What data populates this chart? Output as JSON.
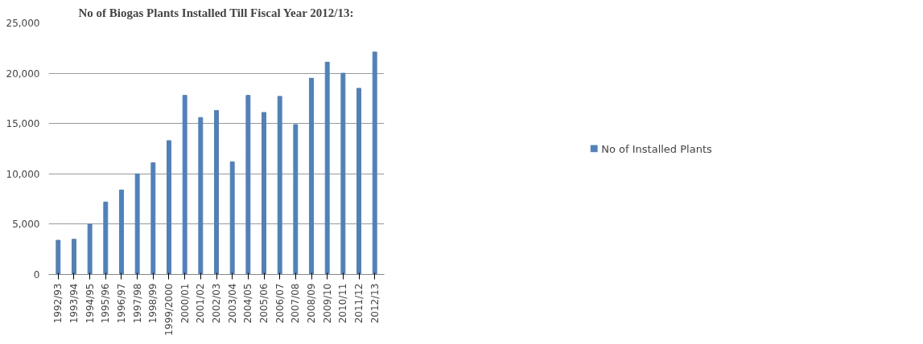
{
  "chart_data": {
    "type": "bar",
    "title": "No of Biogas Plants Installed Till Fiscal Year 2012/13:",
    "categories": [
      "1992/93",
      "1993/94",
      "1994/95",
      "1995/96",
      "1996/97",
      "1997/98",
      "1998/99",
      "1999/2000",
      "2000/01",
      "2001/02",
      "2002/03",
      "2003/04",
      "2004/05",
      "2005/06",
      "2006/07",
      "2007/08",
      "2008/09",
      "2009/10",
      "2010/11",
      "2011/12",
      "2012/13"
    ],
    "series": [
      {
        "name": "No of Installed Plants",
        "color": "#4f81bd",
        "values": [
          3400,
          3500,
          5000,
          7200,
          8400,
          10000,
          11100,
          13300,
          17800,
          15600,
          16300,
          11200,
          17800,
          16100,
          17700,
          14900,
          19500,
          21100,
          20000,
          18500,
          22100
        ]
      }
    ],
    "ylim": [
      0,
      25000
    ],
    "yticks": [
      {
        "value": 0,
        "label": "0"
      },
      {
        "value": 5000,
        "label": "5,000"
      },
      {
        "value": 10000,
        "label": "10,000"
      },
      {
        "value": 15000,
        "label": "15,000"
      },
      {
        "value": 20000,
        "label": "20,000"
      },
      {
        "value": 25000,
        "label": "25,000"
      }
    ],
    "grid": "y",
    "legend": "right"
  }
}
